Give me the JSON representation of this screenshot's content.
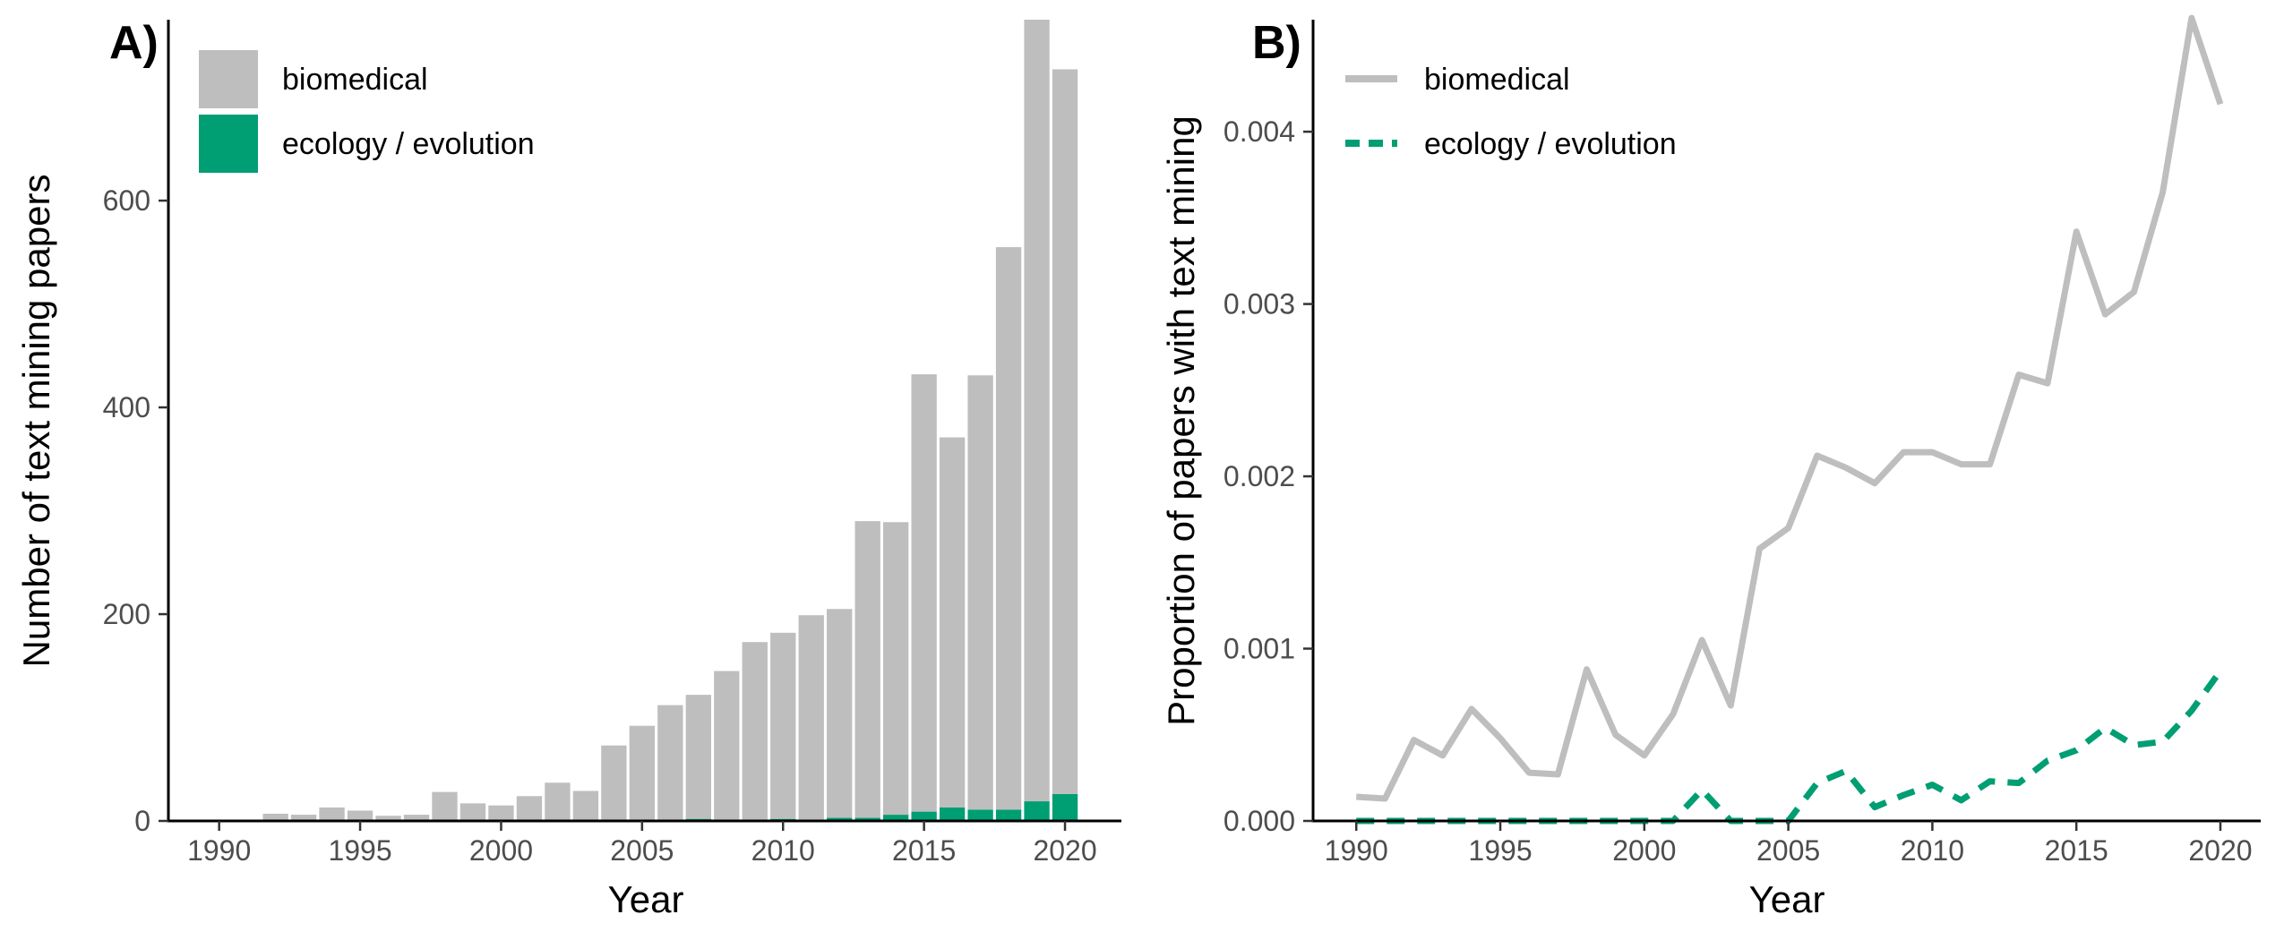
{
  "chart_data": [
    {
      "panel_label": "A)",
      "type": "bar",
      "stacked": true,
      "xlabel": "Year",
      "ylabel": "Number of text mining papers",
      "xlim": [
        1988.2,
        2022.0
      ],
      "ylim": [
        0,
        775
      ],
      "x_ticks": [
        1990,
        1995,
        2000,
        2005,
        2010,
        2015,
        2020
      ],
      "y_ticks": [
        0,
        200,
        400,
        600
      ],
      "legend_position": "top-left",
      "x": [
        1990,
        1991,
        1992,
        1993,
        1994,
        1995,
        1996,
        1997,
        1998,
        1999,
        2000,
        2001,
        2002,
        2003,
        2004,
        2005,
        2006,
        2007,
        2008,
        2009,
        2010,
        2011,
        2012,
        2013,
        2014,
        2015,
        2016,
        2017,
        2018,
        2019,
        2020
      ],
      "series": [
        {
          "name": "ecology / evolution",
          "color": "#009e73",
          "values": [
            0,
            0,
            0,
            0,
            0,
            0,
            0,
            0,
            0,
            0,
            0,
            0,
            1,
            0,
            0,
            0,
            1,
            2,
            1,
            1,
            2,
            1,
            3,
            3,
            6,
            9,
            13,
            11,
            11,
            19,
            26
          ]
        },
        {
          "name": "biomedical",
          "color": "#bebebe",
          "values": [
            1,
            1,
            7,
            6,
            13,
            10,
            5,
            6,
            28,
            17,
            15,
            24,
            36,
            29,
            73,
            92,
            111,
            120,
            144,
            172,
            180,
            198,
            202,
            287,
            283,
            423,
            358,
            420,
            544,
            756,
            701
          ]
        }
      ]
    },
    {
      "panel_label": "B)",
      "type": "line",
      "xlabel": "Year",
      "ylabel": "Proportion of papers with text mining",
      "xlim": [
        1988.5,
        2021.4
      ],
      "ylim": [
        0,
        0.00465
      ],
      "x_ticks": [
        1990,
        1995,
        2000,
        2005,
        2010,
        2015,
        2020
      ],
      "y_ticks": [
        "0.000",
        "0.001",
        "0.002",
        "0.003",
        "0.004"
      ],
      "legend_position": "top-left",
      "x": [
        1990,
        1991,
        1992,
        1993,
        1994,
        1995,
        1996,
        1997,
        1998,
        1999,
        2000,
        2001,
        2002,
        2003,
        2004,
        2005,
        2006,
        2007,
        2008,
        2009,
        2010,
        2011,
        2012,
        2013,
        2014,
        2015,
        2016,
        2017,
        2018,
        2019,
        2020
      ],
      "series": [
        {
          "name": "biomedical",
          "color": "#bebebe",
          "dash": "solid",
          "values": [
            0.00014,
            0.00013,
            0.00047,
            0.00038,
            0.00065,
            0.00048,
            0.00028,
            0.00027,
            0.00088,
            0.0005,
            0.00038,
            0.00062,
            0.00105,
            0.00067,
            0.00158,
            0.0017,
            0.00212,
            0.00205,
            0.00196,
            0.00214,
            0.00214,
            0.00207,
            0.00207,
            0.00259,
            0.00254,
            0.00342,
            0.00294,
            0.00307,
            0.00365,
            0.00466,
            0.00416
          ]
        },
        {
          "name": "ecology / evolution",
          "color": "#009e73",
          "dash": "dashed",
          "values": [
            0.0,
            0.0,
            0.0,
            0.0,
            0.0,
            0.0,
            0.0,
            0.0,
            0.0,
            0.0,
            0.0,
            0.0,
            0.00018,
            0.0,
            0.0,
            0.0,
            0.00022,
            0.00029,
            8e-05,
            0.00015,
            0.00021,
            0.00012,
            0.00023,
            0.00022,
            0.00035,
            0.00041,
            0.00054,
            0.00044,
            0.00046,
            0.00064,
            0.00087
          ]
        }
      ]
    }
  ]
}
